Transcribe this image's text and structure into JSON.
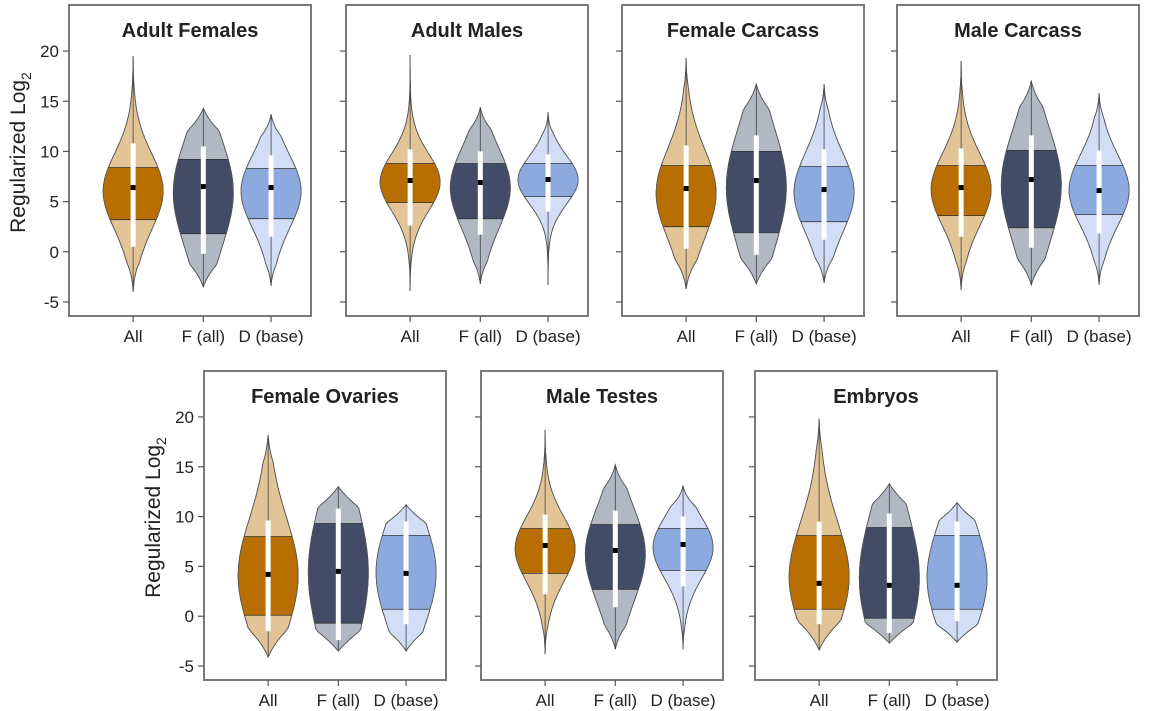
{
  "chart_data": [
    {
      "type": "violin",
      "title": "Adult Females",
      "ylabel": "Regularized Log",
      "ylabel_subscript": "2",
      "ylim": [
        -6,
        22
      ],
      "yticks": [
        "-5",
        "0",
        "5",
        "10",
        "15",
        "20"
      ],
      "categories": [
        "All",
        "F (all)",
        "D (base)"
      ],
      "series": [
        {
          "category": "All",
          "min": -4.0,
          "max": 19.5,
          "q1": 3.2,
          "median": 6.4,
          "q3": 8.4,
          "whisker_low": 0.5,
          "whisker_high": 10.8
        },
        {
          "category": "F (all)",
          "min": -3.5,
          "max": 14.3,
          "q1": 1.8,
          "median": 6.5,
          "q3": 9.2,
          "whisker_low": -0.2,
          "whisker_high": 10.5
        },
        {
          "category": "D (base)",
          "min": -3.4,
          "max": 13.7,
          "q1": 3.3,
          "median": 6.4,
          "q3": 8.3,
          "whisker_low": 1.5,
          "whisker_high": 9.6
        }
      ]
    },
    {
      "type": "violin",
      "title": "Adult Males",
      "ylim": [
        -6,
        22
      ],
      "categories": [
        "All",
        "F (all)",
        "D (base)"
      ],
      "series": [
        {
          "category": "All",
          "min": -3.9,
          "max": 19.6,
          "q1": 4.9,
          "median": 7.1,
          "q3": 8.8,
          "whisker_low": 2.6,
          "whisker_high": 10.2
        },
        {
          "category": "F (all)",
          "min": -3.2,
          "max": 14.4,
          "q1": 3.3,
          "median": 6.9,
          "q3": 8.8,
          "whisker_low": 1.7,
          "whisker_high": 10.0
        },
        {
          "category": "D (base)",
          "min": -3.3,
          "max": 13.9,
          "q1": 5.5,
          "median": 7.2,
          "q3": 8.8,
          "whisker_low": 4.0,
          "whisker_high": 9.7
        }
      ]
    },
    {
      "type": "violin",
      "title": "Female Carcass",
      "ylim": [
        -6,
        22
      ],
      "categories": [
        "All",
        "F (all)",
        "D (base)"
      ],
      "series": [
        {
          "category": "All",
          "min": -3.7,
          "max": 19.3,
          "q1": 2.5,
          "median": 6.3,
          "q3": 8.6,
          "whisker_low": 0.3,
          "whisker_high": 10.6
        },
        {
          "category": "F (all)",
          "min": -3.2,
          "max": 16.7,
          "q1": 1.9,
          "median": 7.1,
          "q3": 10.0,
          "whisker_low": -0.3,
          "whisker_high": 11.6
        },
        {
          "category": "D (base)",
          "min": -3.1,
          "max": 16.7,
          "q1": 3.0,
          "median": 6.2,
          "q3": 8.5,
          "whisker_low": 1.2,
          "whisker_high": 10.2
        }
      ]
    },
    {
      "type": "violin",
      "title": "Male Carcass",
      "ylim": [
        -6,
        22
      ],
      "categories": [
        "All",
        "F (all)",
        "D (base)"
      ],
      "series": [
        {
          "category": "All",
          "min": -3.8,
          "max": 19.0,
          "q1": 3.6,
          "median": 6.4,
          "q3": 8.6,
          "whisker_low": 1.5,
          "whisker_high": 10.3
        },
        {
          "category": "F (all)",
          "min": -3.3,
          "max": 17.0,
          "q1": 2.4,
          "median": 7.2,
          "q3": 10.1,
          "whisker_low": 0.4,
          "whisker_high": 11.6
        },
        {
          "category": "D (base)",
          "min": -3.3,
          "max": 15.8,
          "q1": 3.7,
          "median": 6.1,
          "q3": 8.6,
          "whisker_low": 1.8,
          "whisker_high": 10.1
        }
      ]
    },
    {
      "type": "violin",
      "title": "Female Ovaries",
      "ylabel": "Regularized Log",
      "ylabel_subscript": "2",
      "ylim": [
        -6,
        22
      ],
      "yticks": [
        "-5",
        "0",
        "5",
        "10",
        "15",
        "20"
      ],
      "categories": [
        "All",
        "F (all)",
        "D (base)"
      ],
      "series": [
        {
          "category": "All",
          "min": -4.1,
          "max": 18.2,
          "q1": 0.1,
          "median": 4.2,
          "q3": 8.0,
          "whisker_low": -1.5,
          "whisker_high": 9.6
        },
        {
          "category": "F (all)",
          "min": -3.5,
          "max": 13.0,
          "q1": -0.7,
          "median": 4.5,
          "q3": 9.3,
          "whisker_low": -2.4,
          "whisker_high": 10.8
        },
        {
          "category": "D (base)",
          "min": -3.5,
          "max": 11.2,
          "q1": 0.7,
          "median": 4.3,
          "q3": 8.1,
          "whisker_low": -0.8,
          "whisker_high": 9.5
        }
      ]
    },
    {
      "type": "violin",
      "title": "Male Testes",
      "ylim": [
        -6,
        22
      ],
      "categories": [
        "All",
        "F (all)",
        "D (base)"
      ],
      "series": [
        {
          "category": "All",
          "min": -3.8,
          "max": 18.7,
          "q1": 4.3,
          "median": 7.1,
          "q3": 8.8,
          "whisker_low": 2.2,
          "whisker_high": 10.2
        },
        {
          "category": "F (all)",
          "min": -3.3,
          "max": 15.2,
          "q1": 2.7,
          "median": 6.6,
          "q3": 9.2,
          "whisker_low": 0.9,
          "whisker_high": 10.6
        },
        {
          "category": "D (base)",
          "min": -3.3,
          "max": 13.1,
          "q1": 4.6,
          "median": 7.2,
          "q3": 8.8,
          "whisker_low": 3.0,
          "whisker_high": 10.0
        }
      ]
    },
    {
      "type": "violin",
      "title": "Embryos",
      "ylim": [
        -6,
        22
      ],
      "categories": [
        "All",
        "F (all)",
        "D (base)"
      ],
      "series": [
        {
          "category": "All",
          "min": -3.4,
          "max": 19.8,
          "q1": 0.7,
          "median": 3.3,
          "q3": 8.1,
          "whisker_low": -0.8,
          "whisker_high": 9.5
        },
        {
          "category": "F (all)",
          "min": -2.7,
          "max": 13.3,
          "q1": -0.2,
          "median": 3.1,
          "q3": 8.9,
          "whisker_low": -1.7,
          "whisker_high": 10.3
        },
        {
          "category": "D (base)",
          "min": -2.6,
          "max": 11.4,
          "q1": 0.7,
          "median": 3.1,
          "q3": 8.1,
          "whisker_low": -0.5,
          "whisker_high": 9.5
        }
      ]
    }
  ],
  "colors": {
    "all_light": "#e3c496",
    "all_dark": "#b86e00",
    "f_light": "#b1b7c3",
    "f_dark": "#434c66",
    "d_light": "#d2def5",
    "d_dark": "#8caade",
    "frame": "#7a7a7a"
  }
}
